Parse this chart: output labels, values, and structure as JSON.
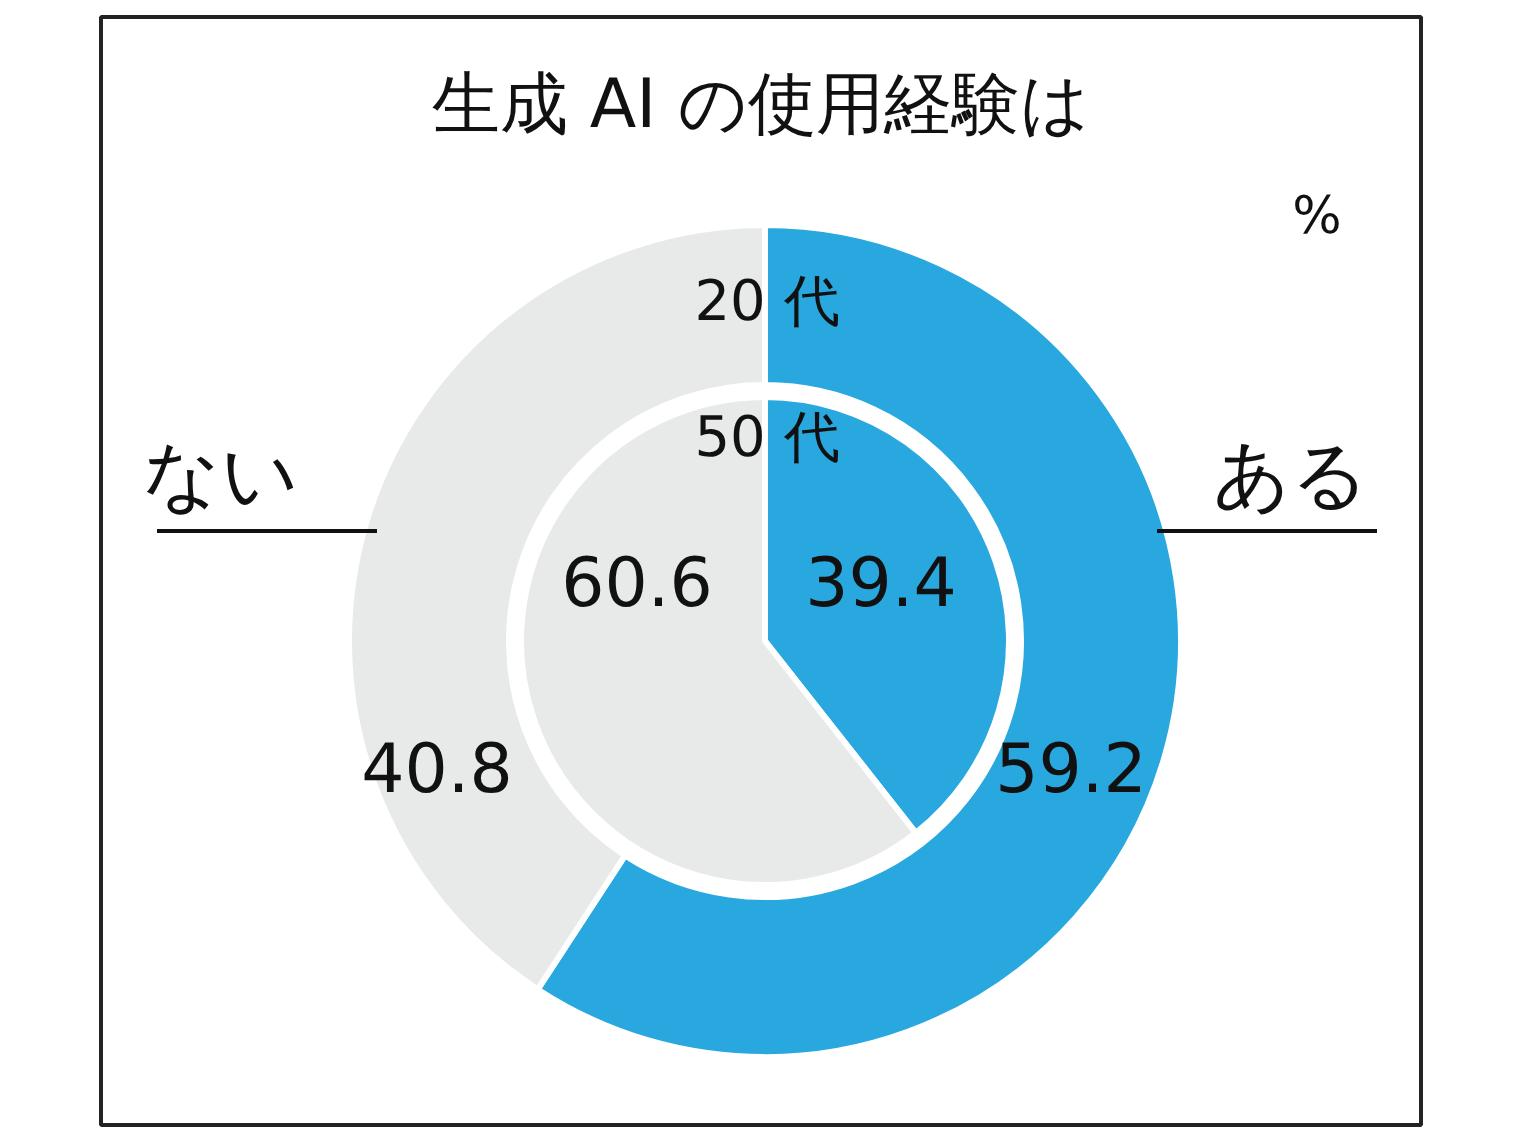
{
  "chart_data": {
    "type": "donut",
    "title": "生成 AI の使用経験は",
    "categories": [
      "ある",
      "ない"
    ],
    "colors": [
      "#29a8e0",
      "#e8e9e9"
    ],
    "data_labels": true,
    "annotations": [
      "%"
    ],
    "series": [
      {
        "name": "20 代",
        "values": [
          59.2,
          40.8
        ]
      },
      {
        "name": "50 代",
        "values": [
          39.4,
          60.6
        ]
      }
    ]
  }
}
